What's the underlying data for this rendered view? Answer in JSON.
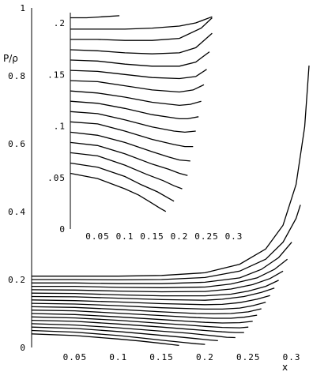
{
  "chart_data": [
    {
      "id": "main",
      "type": "line",
      "ylabel": "P/ρ",
      "xlabel": "x",
      "xlim": [
        0,
        0.33
      ],
      "ylim": [
        0,
        1
      ],
      "x_ticks": [
        "0.05",
        "0.1",
        "0.15",
        "0.2",
        "0.25",
        "0.3"
      ],
      "x_tick_values": [
        0.05,
        0.1,
        0.15,
        0.2,
        0.25,
        0.3
      ],
      "y_ticks": [
        "0",
        "0.2",
        "0.4",
        "0.6",
        "0.8",
        "1"
      ],
      "y_tick_values": [
        0,
        0.2,
        0.4,
        0.6,
        0.8,
        1
      ],
      "grid": false,
      "series": [
        {
          "x": [
            0.0,
            0.05,
            0.1,
            0.15,
            0.2,
            0.24,
            0.27,
            0.29,
            0.305,
            0.315,
            0.32
          ],
          "y": [
            0.21,
            0.21,
            0.21,
            0.212,
            0.22,
            0.245,
            0.29,
            0.36,
            0.48,
            0.65,
            0.83
          ]
        },
        {
          "x": [
            0.0,
            0.05,
            0.1,
            0.15,
            0.2,
            0.24,
            0.27,
            0.29,
            0.305,
            0.31
          ],
          "y": [
            0.2,
            0.2,
            0.199,
            0.2,
            0.206,
            0.225,
            0.26,
            0.31,
            0.38,
            0.42
          ]
        },
        {
          "x": [
            0.0,
            0.05,
            0.1,
            0.15,
            0.2,
            0.24,
            0.265,
            0.285,
            0.3
          ],
          "y": [
            0.19,
            0.19,
            0.188,
            0.188,
            0.192,
            0.205,
            0.23,
            0.265,
            0.31
          ]
        },
        {
          "x": [
            0.0,
            0.05,
            0.1,
            0.15,
            0.2,
            0.23,
            0.26,
            0.28,
            0.295
          ],
          "y": [
            0.18,
            0.18,
            0.177,
            0.176,
            0.178,
            0.187,
            0.205,
            0.23,
            0.26
          ]
        },
        {
          "x": [
            0.0,
            0.05,
            0.1,
            0.15,
            0.2,
            0.23,
            0.255,
            0.275,
            0.29
          ],
          "y": [
            0.17,
            0.169,
            0.166,
            0.164,
            0.165,
            0.172,
            0.185,
            0.203,
            0.225
          ]
        },
        {
          "x": [
            0.0,
            0.05,
            0.1,
            0.15,
            0.2,
            0.23,
            0.25,
            0.27,
            0.285
          ],
          "y": [
            0.16,
            0.159,
            0.155,
            0.152,
            0.152,
            0.157,
            0.166,
            0.18,
            0.198
          ]
        },
        {
          "x": [
            0.0,
            0.05,
            0.1,
            0.15,
            0.2,
            0.22,
            0.245,
            0.265,
            0.28
          ],
          "y": [
            0.15,
            0.149,
            0.145,
            0.141,
            0.139,
            0.142,
            0.15,
            0.162,
            0.175
          ]
        },
        {
          "x": [
            0.0,
            0.05,
            0.1,
            0.15,
            0.2,
            0.22,
            0.24,
            0.26,
            0.275
          ],
          "y": [
            0.14,
            0.138,
            0.134,
            0.129,
            0.126,
            0.127,
            0.132,
            0.142,
            0.153
          ]
        },
        {
          "x": [
            0.0,
            0.05,
            0.1,
            0.15,
            0.2,
            0.22,
            0.24,
            0.255,
            0.27
          ],
          "y": [
            0.13,
            0.128,
            0.123,
            0.117,
            0.113,
            0.113,
            0.116,
            0.123,
            0.133
          ]
        },
        {
          "x": [
            0.0,
            0.05,
            0.1,
            0.15,
            0.19,
            0.21,
            0.23,
            0.25,
            0.265
          ],
          "y": [
            0.12,
            0.118,
            0.112,
            0.105,
            0.1,
            0.099,
            0.1,
            0.105,
            0.114
          ]
        },
        {
          "x": [
            0.0,
            0.05,
            0.1,
            0.15,
            0.19,
            0.21,
            0.23,
            0.245,
            0.26
          ],
          "y": [
            0.11,
            0.108,
            0.101,
            0.094,
            0.088,
            0.086,
            0.086,
            0.089,
            0.095
          ]
        },
        {
          "x": [
            0.0,
            0.05,
            0.1,
            0.15,
            0.18,
            0.2,
            0.22,
            0.24,
            0.255
          ],
          "y": [
            0.1,
            0.097,
            0.09,
            0.082,
            0.077,
            0.074,
            0.072,
            0.073,
            0.077
          ]
        },
        {
          "x": [
            0.0,
            0.05,
            0.1,
            0.15,
            0.18,
            0.2,
            0.22,
            0.24,
            0.25
          ],
          "y": [
            0.09,
            0.087,
            0.08,
            0.071,
            0.066,
            0.062,
            0.059,
            0.058,
            0.06
          ]
        },
        {
          "x": [
            0.0,
            0.05,
            0.1,
            0.15,
            0.18,
            0.2,
            0.22,
            0.235,
            0.245
          ],
          "y": [
            0.08,
            0.077,
            0.069,
            0.06,
            0.054,
            0.05,
            0.046,
            0.044,
            0.044
          ]
        },
        {
          "x": [
            0.0,
            0.05,
            0.1,
            0.15,
            0.18,
            0.2,
            0.215,
            0.225,
            0.235
          ],
          "y": [
            0.07,
            0.066,
            0.058,
            0.048,
            0.042,
            0.037,
            0.033,
            0.03,
            0.029
          ]
        },
        {
          "x": [
            0.0,
            0.05,
            0.1,
            0.14,
            0.17,
            0.19,
            0.205,
            0.215
          ],
          "y": [
            0.06,
            0.056,
            0.047,
            0.038,
            0.031,
            0.026,
            0.022,
            0.02
          ]
        },
        {
          "x": [
            0.0,
            0.05,
            0.1,
            0.13,
            0.155,
            0.175,
            0.19,
            0.2
          ],
          "y": [
            0.05,
            0.045,
            0.035,
            0.027,
            0.02,
            0.015,
            0.011,
            0.009
          ]
        },
        {
          "x": [
            0.0,
            0.05,
            0.1,
            0.125,
            0.15,
            0.16,
            0.17
          ],
          "y": [
            0.04,
            0.035,
            0.025,
            0.019,
            0.012,
            0.009,
            0.006
          ]
        }
      ]
    },
    {
      "id": "inset",
      "type": "line",
      "xlim": [
        0,
        0.3
      ],
      "ylim": [
        0,
        0.21
      ],
      "x_ticks": [
        "0.05",
        "0.1",
        "0.15",
        "0.2",
        "0.25",
        "0.3"
      ],
      "x_tick_values": [
        0.05,
        0.1,
        0.15,
        0.2,
        0.25,
        0.3
      ],
      "y_ticks": [
        ".05",
        ".1",
        ".15",
        ".2",
        "0"
      ],
      "y_tick_values": [
        0.05,
        0.1,
        0.15,
        0.2,
        0
      ],
      "grid": false,
      "series": [
        {
          "x": [
            0.0,
            0.03,
            0.06,
            0.09
          ],
          "y": [
            0.205,
            0.205,
            0.206,
            0.207
          ]
        },
        {
          "x": [
            0.0,
            0.05,
            0.1,
            0.15,
            0.2,
            0.23,
            0.26
          ],
          "y": [
            0.194,
            0.194,
            0.194,
            0.195,
            0.197,
            0.2,
            0.206
          ]
        },
        {
          "x": [
            0.0,
            0.05,
            0.1,
            0.15,
            0.2,
            0.24,
            0.26
          ],
          "y": [
            0.184,
            0.184,
            0.183,
            0.183,
            0.185,
            0.195,
            0.205
          ]
        },
        {
          "x": [
            0.0,
            0.05,
            0.1,
            0.15,
            0.2,
            0.23,
            0.26
          ],
          "y": [
            0.174,
            0.173,
            0.171,
            0.17,
            0.171,
            0.176,
            0.19
          ]
        },
        {
          "x": [
            0.0,
            0.05,
            0.1,
            0.15,
            0.2,
            0.23,
            0.255
          ],
          "y": [
            0.164,
            0.163,
            0.16,
            0.158,
            0.158,
            0.162,
            0.172
          ]
        },
        {
          "x": [
            0.0,
            0.05,
            0.1,
            0.15,
            0.2,
            0.23,
            0.25
          ],
          "y": [
            0.154,
            0.153,
            0.15,
            0.147,
            0.146,
            0.148,
            0.155
          ]
        },
        {
          "x": [
            0.0,
            0.05,
            0.1,
            0.15,
            0.2,
            0.225,
            0.245
          ],
          "y": [
            0.144,
            0.143,
            0.139,
            0.135,
            0.133,
            0.135,
            0.14
          ]
        },
        {
          "x": [
            0.0,
            0.05,
            0.1,
            0.15,
            0.2,
            0.22,
            0.24
          ],
          "y": [
            0.134,
            0.132,
            0.128,
            0.123,
            0.12,
            0.121,
            0.124
          ]
        },
        {
          "x": [
            0.0,
            0.05,
            0.1,
            0.15,
            0.2,
            0.215,
            0.235
          ],
          "y": [
            0.124,
            0.122,
            0.117,
            0.111,
            0.107,
            0.107,
            0.109
          ]
        },
        {
          "x": [
            0.0,
            0.05,
            0.1,
            0.15,
            0.19,
            0.21,
            0.23
          ],
          "y": [
            0.114,
            0.112,
            0.106,
            0.099,
            0.095,
            0.094,
            0.095
          ]
        },
        {
          "x": [
            0.0,
            0.05,
            0.1,
            0.15,
            0.19,
            0.21,
            0.225
          ],
          "y": [
            0.104,
            0.102,
            0.095,
            0.087,
            0.082,
            0.08,
            0.08
          ]
        },
        {
          "x": [
            0.0,
            0.05,
            0.1,
            0.15,
            0.18,
            0.2,
            0.22
          ],
          "y": [
            0.094,
            0.091,
            0.084,
            0.075,
            0.07,
            0.067,
            0.066
          ]
        },
        {
          "x": [
            0.0,
            0.05,
            0.1,
            0.15,
            0.18,
            0.2,
            0.215
          ],
          "y": [
            0.084,
            0.081,
            0.073,
            0.063,
            0.058,
            0.054,
            0.052
          ]
        },
        {
          "x": [
            0.0,
            0.05,
            0.1,
            0.14,
            0.17,
            0.19,
            0.205
          ],
          "y": [
            0.074,
            0.071,
            0.062,
            0.053,
            0.047,
            0.042,
            0.039
          ]
        },
        {
          "x": [
            0.0,
            0.05,
            0.1,
            0.13,
            0.16,
            0.18,
            0.19
          ],
          "y": [
            0.064,
            0.06,
            0.051,
            0.043,
            0.036,
            0.03,
            0.027
          ]
        },
        {
          "x": [
            0.0,
            0.05,
            0.1,
            0.125,
            0.15,
            0.165,
            0.175
          ],
          "y": [
            0.054,
            0.049,
            0.039,
            0.033,
            0.025,
            0.02,
            0.017
          ]
        }
      ]
    }
  ]
}
